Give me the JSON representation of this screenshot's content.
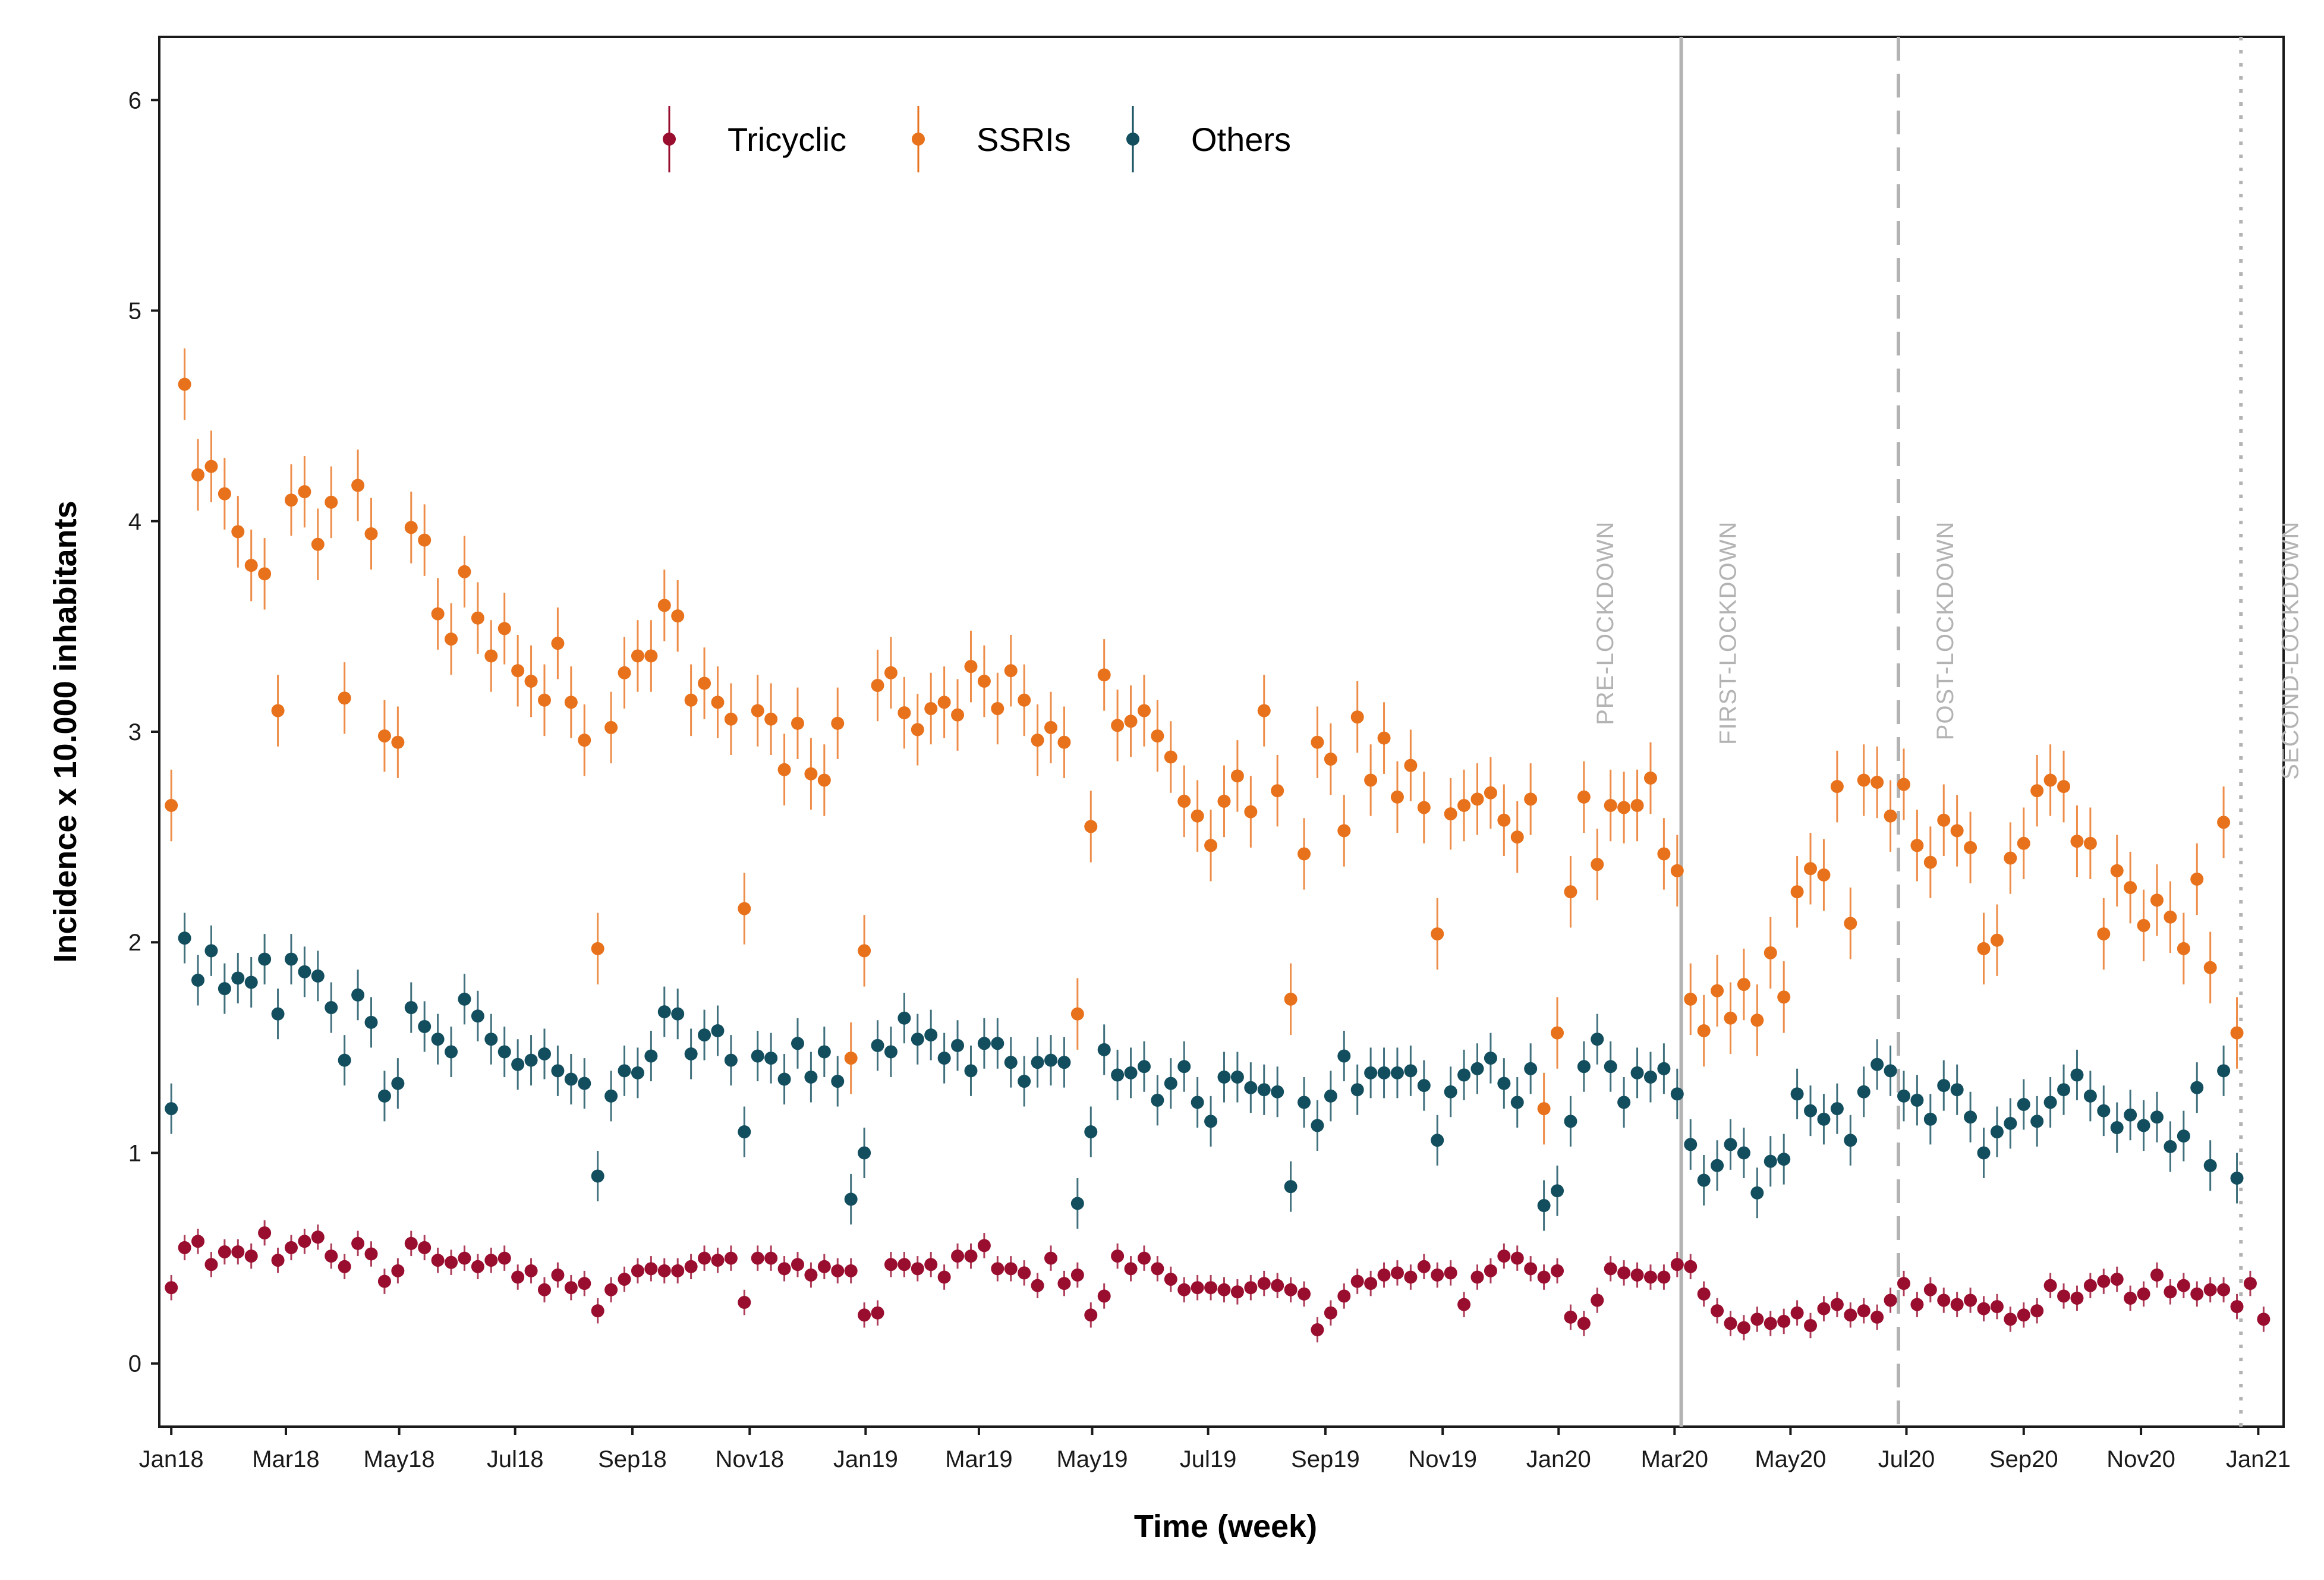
{
  "chart_data": {
    "type": "scatter",
    "xlabel": "Time (week)",
    "ylabel": "Incidence x 10.000 inhabitants",
    "ylim": [
      -0.3,
      6.3
    ],
    "yticks": [
      0,
      1,
      2,
      3,
      4,
      5,
      6
    ],
    "xlim": [
      -0.9,
      158.5
    ],
    "xticks": [
      {
        "label": "Jan18",
        "week": 0
      },
      {
        "label": "Mar18",
        "week": 8.6
      },
      {
        "label": "May18",
        "week": 17.1
      },
      {
        "label": "Jul18",
        "week": 25.8
      },
      {
        "label": "Sep18",
        "week": 34.6
      },
      {
        "label": "Nov18",
        "week": 43.4
      },
      {
        "label": "Jan19",
        "week": 52.1
      },
      {
        "label": "Mar19",
        "week": 60.6
      },
      {
        "label": "May19",
        "week": 69.1
      },
      {
        "label": "Jul19",
        "week": 77.8
      },
      {
        "label": "Sep19",
        "week": 86.6
      },
      {
        "label": "Nov19",
        "week": 95.4
      },
      {
        "label": "Jan20",
        "week": 104.1
      },
      {
        "label": "Mar20",
        "week": 112.8
      },
      {
        "label": "May20",
        "week": 121.5
      },
      {
        "label": "Jul20",
        "week": 130.2
      },
      {
        "label": "Sep20",
        "week": 139.0
      },
      {
        "label": "Nov20",
        "week": 147.8
      },
      {
        "label": "Jan21",
        "week": 156.6
      }
    ],
    "error_half_width": {
      "Tricyclic": 0.06,
      "SSRIs": 0.17,
      "Others": 0.12
    },
    "series": [
      {
        "name": "Tricyclic",
        "color": "#990d2e",
        "values": [
          0.36,
          0.55,
          0.58,
          0.47,
          0.53,
          0.53,
          0.51,
          0.62,
          0.49,
          0.55,
          0.58,
          0.6,
          0.51,
          0.46,
          0.57,
          0.52,
          0.39,
          0.44,
          0.57,
          0.55,
          0.49,
          0.48,
          0.5,
          0.46,
          0.49,
          0.5,
          0.41,
          0.44,
          0.35,
          0.42,
          0.36,
          0.38,
          0.25,
          0.35,
          0.4,
          0.44,
          0.45,
          0.44,
          0.44,
          0.46,
          0.5,
          0.49,
          0.5,
          0.29,
          0.5,
          0.5,
          0.45,
          0.47,
          0.42,
          0.46,
          0.44,
          0.44,
          0.23,
          0.24,
          0.47,
          0.47,
          0.45,
          0.47,
          0.41,
          0.51,
          0.51,
          0.56,
          0.45,
          0.45,
          0.43,
          0.37,
          0.5,
          0.38,
          0.42,
          0.23,
          0.32,
          0.51,
          0.45,
          0.5,
          0.45,
          0.4,
          0.35,
          0.36,
          0.36,
          0.35,
          0.34,
          0.36,
          0.38,
          0.37,
          0.35,
          0.33,
          0.16,
          0.24,
          0.32,
          0.39,
          0.38,
          0.42,
          0.43,
          0.41,
          0.46,
          0.42,
          0.43,
          0.28,
          0.41,
          0.44,
          0.51,
          0.5,
          0.45,
          0.41,
          0.44,
          0.22,
          0.19,
          0.3,
          0.45,
          0.43,
          0.42,
          0.41,
          0.41,
          0.47,
          0.46,
          0.33,
          0.25,
          0.19,
          0.17,
          0.21,
          0.19,
          0.2,
          0.24,
          0.18,
          0.26,
          0.28,
          0.23,
          0.25,
          0.22,
          0.3,
          0.38,
          0.28,
          0.35,
          0.3,
          0.28,
          0.3,
          0.26,
          0.27,
          0.21,
          0.23,
          0.25,
          0.37,
          0.32,
          0.31,
          0.37,
          0.39,
          0.4,
          0.31,
          0.33,
          0.42,
          0.34,
          0.37,
          0.33,
          0.35,
          0.35,
          0.27,
          0.38,
          0.21
        ]
      },
      {
        "name": "SSRIs",
        "color": "#e8711c",
        "values": [
          2.65,
          4.65,
          4.22,
          4.26,
          4.13,
          3.95,
          3.79,
          3.75,
          3.1,
          4.1,
          4.14,
          3.89,
          4.09,
          3.16,
          4.17,
          3.94,
          2.98,
          2.95,
          3.97,
          3.91,
          3.56,
          3.44,
          3.76,
          3.54,
          3.36,
          3.49,
          3.29,
          3.24,
          3.15,
          3.42,
          3.14,
          2.96,
          1.97,
          3.02,
          3.28,
          3.36,
          3.36,
          3.6,
          3.55,
          3.15,
          3.23,
          3.14,
          3.06,
          2.16,
          3.1,
          3.06,
          2.82,
          3.04,
          2.8,
          2.77,
          3.04,
          1.45,
          1.96,
          3.22,
          3.28,
          3.09,
          3.01,
          3.11,
          3.14,
          3.08,
          3.31,
          3.24,
          3.11,
          3.29,
          3.15,
          2.96,
          3.02,
          2.95,
          1.66,
          2.55,
          3.27,
          3.03,
          3.05,
          3.1,
          2.98,
          2.88,
          2.67,
          2.6,
          2.46,
          2.67,
          2.79,
          2.62,
          3.1,
          2.72,
          1.73,
          2.42,
          2.95,
          2.87,
          2.53,
          3.07,
          2.77,
          2.97,
          2.69,
          2.84,
          2.64,
          2.04,
          2.61,
          2.65,
          2.68,
          2.71,
          2.58,
          2.5,
          2.68,
          1.21,
          1.57,
          2.24,
          2.69,
          2.37,
          2.65,
          2.64,
          2.65,
          2.78,
          2.42,
          2.34,
          1.73,
          1.58,
          1.77,
          1.64,
          1.8,
          1.63,
          1.95,
          1.74,
          2.24,
          2.35,
          2.32,
          2.74,
          2.09,
          2.77,
          2.76,
          2.6,
          2.75,
          2.46,
          2.38,
          2.58,
          2.53,
          2.45,
          1.97,
          2.01,
          2.4,
          2.47,
          2.72,
          2.77,
          2.74,
          2.48,
          2.47,
          2.04,
          2.34,
          2.26,
          2.08,
          2.2,
          2.12,
          1.97,
          2.3,
          1.88,
          2.57,
          1.57
        ]
      },
      {
        "name": "Others",
        "color": "#134e5e",
        "values": [
          1.21,
          2.02,
          1.82,
          1.96,
          1.78,
          1.83,
          1.81,
          1.92,
          1.66,
          1.92,
          1.86,
          1.84,
          1.69,
          1.44,
          1.75,
          1.62,
          1.27,
          1.33,
          1.69,
          1.6,
          1.54,
          1.48,
          1.73,
          1.65,
          1.54,
          1.48,
          1.42,
          1.44,
          1.47,
          1.39,
          1.35,
          1.33,
          0.89,
          1.27,
          1.39,
          1.38,
          1.46,
          1.67,
          1.66,
          1.47,
          1.56,
          1.58,
          1.44,
          1.1,
          1.46,
          1.45,
          1.35,
          1.52,
          1.36,
          1.48,
          1.34,
          0.78,
          1.0,
          1.51,
          1.48,
          1.64,
          1.54,
          1.56,
          1.45,
          1.51,
          1.39,
          1.52,
          1.52,
          1.43,
          1.34,
          1.43,
          1.44,
          1.43,
          0.76,
          1.1,
          1.49,
          1.37,
          1.38,
          1.41,
          1.25,
          1.33,
          1.41,
          1.24,
          1.15,
          1.36,
          1.36,
          1.31,
          1.3,
          1.29,
          0.84,
          1.24,
          1.13,
          1.27,
          1.46,
          1.3,
          1.38,
          1.38,
          1.38,
          1.39,
          1.32,
          1.06,
          1.29,
          1.37,
          1.4,
          1.45,
          1.33,
          1.24,
          1.4,
          0.75,
          0.82,
          1.15,
          1.41,
          1.54,
          1.41,
          1.24,
          1.38,
          1.36,
          1.4,
          1.28,
          1.04,
          0.87,
          0.94,
          1.04,
          1.0,
          0.81,
          0.96,
          0.97,
          1.28,
          1.2,
          1.16,
          1.21,
          1.06,
          1.29,
          1.42,
          1.39,
          1.27,
          1.25,
          1.16,
          1.32,
          1.3,
          1.17,
          1.0,
          1.1,
          1.14,
          1.23,
          1.15,
          1.24,
          1.3,
          1.37,
          1.27,
          1.2,
          1.12,
          1.18,
          1.13,
          1.17,
          1.03,
          1.08,
          1.31,
          0.94,
          1.39,
          0.88
        ]
      }
    ],
    "period_lines": [
      {
        "week": 113.3,
        "style": "solid"
      },
      {
        "week": 129.6,
        "style": "dashed"
      },
      {
        "week": 155.3,
        "style": "dotted"
      }
    ],
    "period_labels": [
      {
        "text": "PRE-LOCKDOWN",
        "week": 108.2
      },
      {
        "text": "FIRST-LOCKDOWN",
        "week": 117.4
      },
      {
        "text": "POST-LOCKDOWN",
        "week": 133.7
      },
      {
        "text": "SECOND-LOCKDOWN",
        "week": 159.6
      }
    ],
    "legend": [
      "Tricyclic",
      "SSRIs",
      "Others"
    ]
  }
}
